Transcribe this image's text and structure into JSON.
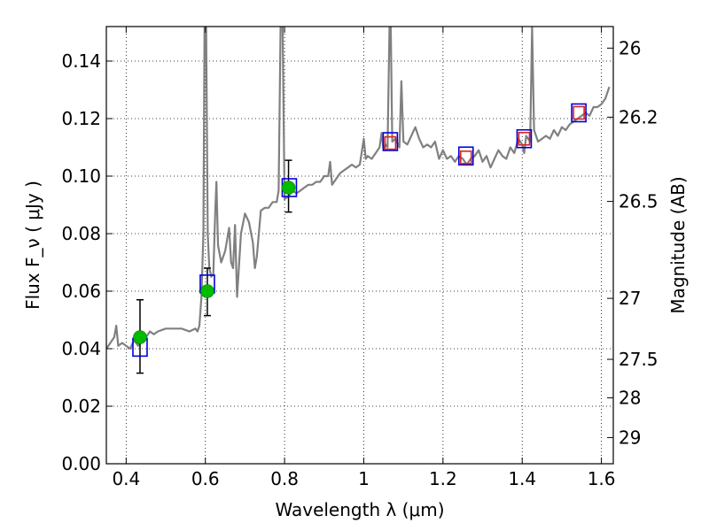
{
  "chart_data": {
    "type": "line",
    "xlabel": "Wavelength  λ (μm)",
    "ylabel": "Flux  F_ν  ( μJy )",
    "ylabel_right": "Magnitude (AB)",
    "xlim": [
      0.35,
      1.63
    ],
    "ylim": [
      0.0,
      0.152
    ],
    "grid": true,
    "x_ticks": [
      {
        "value": 0.4,
        "label": "0.4"
      },
      {
        "value": 0.6,
        "label": "0.6"
      },
      {
        "value": 0.8,
        "label": "0.8"
      },
      {
        "value": 1.0,
        "label": "1"
      },
      {
        "value": 1.2,
        "label": "1.2"
      },
      {
        "value": 1.4,
        "label": "1.4"
      },
      {
        "value": 1.6,
        "label": "1.6"
      }
    ],
    "y_ticks": [
      {
        "value": 0.0,
        "label": "0.00"
      },
      {
        "value": 0.02,
        "label": "0.02"
      },
      {
        "value": 0.04,
        "label": "0.04"
      },
      {
        "value": 0.06,
        "label": "0.06"
      },
      {
        "value": 0.08,
        "label": "0.08"
      },
      {
        "value": 0.1,
        "label": "0.10"
      },
      {
        "value": 0.12,
        "label": "0.12"
      },
      {
        "value": 0.14,
        "label": "0.14"
      }
    ],
    "y2_ticks": [
      {
        "flux": 0.1445,
        "label": "26"
      },
      {
        "flux": 0.1205,
        "label": "26.2"
      },
      {
        "flux": 0.0912,
        "label": "26.5"
      },
      {
        "flux": 0.0575,
        "label": "27"
      },
      {
        "flux": 0.0363,
        "label": "27.5"
      },
      {
        "flux": 0.0229,
        "label": "28"
      },
      {
        "flux": 0.0091,
        "label": "29"
      }
    ],
    "series": [
      {
        "type": "line",
        "color": "#808080",
        "points": [
          [
            0.35,
            0.04
          ],
          [
            0.36,
            0.042
          ],
          [
            0.37,
            0.044
          ],
          [
            0.375,
            0.048
          ],
          [
            0.38,
            0.041
          ],
          [
            0.39,
            0.042
          ],
          [
            0.4,
            0.041
          ],
          [
            0.41,
            0.04
          ],
          [
            0.42,
            0.043
          ],
          [
            0.43,
            0.041
          ],
          [
            0.44,
            0.044
          ],
          [
            0.45,
            0.044
          ],
          [
            0.46,
            0.046
          ],
          [
            0.47,
            0.045
          ],
          [
            0.48,
            0.046
          ],
          [
            0.5,
            0.047
          ],
          [
            0.52,
            0.047
          ],
          [
            0.54,
            0.047
          ],
          [
            0.56,
            0.046
          ],
          [
            0.575,
            0.047
          ],
          [
            0.58,
            0.046
          ],
          [
            0.585,
            0.048
          ],
          [
            0.59,
            0.058
          ],
          [
            0.595,
            0.08
          ],
          [
            0.598,
            0.152
          ],
          [
            0.602,
            0.152
          ],
          [
            0.606,
            0.08
          ],
          [
            0.61,
            0.068
          ],
          [
            0.615,
            0.065
          ],
          [
            0.62,
            0.066
          ],
          [
            0.625,
            0.088
          ],
          [
            0.628,
            0.098
          ],
          [
            0.632,
            0.076
          ],
          [
            0.64,
            0.07
          ],
          [
            0.65,
            0.074
          ],
          [
            0.66,
            0.082
          ],
          [
            0.665,
            0.07
          ],
          [
            0.67,
            0.068
          ],
          [
            0.675,
            0.083
          ],
          [
            0.68,
            0.058
          ],
          [
            0.69,
            0.08
          ],
          [
            0.7,
            0.087
          ],
          [
            0.71,
            0.084
          ],
          [
            0.72,
            0.077
          ],
          [
            0.725,
            0.068
          ],
          [
            0.73,
            0.072
          ],
          [
            0.74,
            0.088
          ],
          [
            0.75,
            0.089
          ],
          [
            0.76,
            0.089
          ],
          [
            0.77,
            0.091
          ],
          [
            0.78,
            0.091
          ],
          [
            0.785,
            0.095
          ],
          [
            0.79,
            0.152
          ],
          [
            0.795,
            0.152
          ],
          [
            0.8,
            0.092
          ],
          [
            0.81,
            0.093
          ],
          [
            0.82,
            0.095
          ],
          [
            0.83,
            0.094
          ],
          [
            0.84,
            0.095
          ],
          [
            0.85,
            0.096
          ],
          [
            0.86,
            0.097
          ],
          [
            0.87,
            0.097
          ],
          [
            0.88,
            0.098
          ],
          [
            0.89,
            0.098
          ],
          [
            0.9,
            0.1
          ],
          [
            0.91,
            0.1
          ],
          [
            0.915,
            0.105
          ],
          [
            0.92,
            0.097
          ],
          [
            0.93,
            0.099
          ],
          [
            0.94,
            0.101
          ],
          [
            0.95,
            0.102
          ],
          [
            0.96,
            0.103
          ],
          [
            0.97,
            0.104
          ],
          [
            0.98,
            0.103
          ],
          [
            0.99,
            0.104
          ],
          [
            1.0,
            0.113
          ],
          [
            1.005,
            0.106
          ],
          [
            1.01,
            0.107
          ],
          [
            1.02,
            0.106
          ],
          [
            1.03,
            0.108
          ],
          [
            1.04,
            0.11
          ],
          [
            1.045,
            0.115
          ],
          [
            1.05,
            0.109
          ],
          [
            1.055,
            0.111
          ],
          [
            1.06,
            0.11
          ],
          [
            1.065,
            0.152
          ],
          [
            1.068,
            0.152
          ],
          [
            1.072,
            0.112
          ],
          [
            1.08,
            0.113
          ],
          [
            1.09,
            0.11
          ],
          [
            1.095,
            0.133
          ],
          [
            1.1,
            0.112
          ],
          [
            1.11,
            0.111
          ],
          [
            1.12,
            0.114
          ],
          [
            1.13,
            0.117
          ],
          [
            1.14,
            0.113
          ],
          [
            1.15,
            0.11
          ],
          [
            1.16,
            0.111
          ],
          [
            1.17,
            0.11
          ],
          [
            1.18,
            0.112
          ],
          [
            1.19,
            0.106
          ],
          [
            1.2,
            0.109
          ],
          [
            1.21,
            0.106
          ],
          [
            1.22,
            0.107
          ],
          [
            1.23,
            0.105
          ],
          [
            1.24,
            0.107
          ],
          [
            1.25,
            0.106
          ],
          [
            1.26,
            0.104
          ],
          [
            1.27,
            0.106
          ],
          [
            1.28,
            0.107
          ],
          [
            1.29,
            0.109
          ],
          [
            1.3,
            0.105
          ],
          [
            1.31,
            0.107
          ],
          [
            1.32,
            0.103
          ],
          [
            1.33,
            0.106
          ],
          [
            1.34,
            0.109
          ],
          [
            1.35,
            0.107
          ],
          [
            1.36,
            0.106
          ],
          [
            1.37,
            0.11
          ],
          [
            1.38,
            0.108
          ],
          [
            1.39,
            0.113
          ],
          [
            1.4,
            0.111
          ],
          [
            1.405,
            0.108
          ],
          [
            1.41,
            0.114
          ],
          [
            1.42,
            0.112
          ],
          [
            1.425,
            0.152
          ],
          [
            1.43,
            0.116
          ],
          [
            1.44,
            0.112
          ],
          [
            1.45,
            0.113
          ],
          [
            1.46,
            0.114
          ],
          [
            1.47,
            0.113
          ],
          [
            1.48,
            0.116
          ],
          [
            1.49,
            0.114
          ],
          [
            1.5,
            0.117
          ],
          [
            1.51,
            0.116
          ],
          [
            1.52,
            0.118
          ],
          [
            1.53,
            0.119
          ],
          [
            1.54,
            0.12
          ],
          [
            1.55,
            0.121
          ],
          [
            1.56,
            0.122
          ],
          [
            1.57,
            0.121
          ],
          [
            1.58,
            0.124
          ],
          [
            1.59,
            0.124
          ],
          [
            1.6,
            0.125
          ],
          [
            1.61,
            0.127
          ],
          [
            1.62,
            0.131
          ]
        ]
      }
    ],
    "observed_points": {
      "color": "#00bb00",
      "points": [
        {
          "x": 0.435,
          "y": 0.044,
          "yerr_low": 0.0315,
          "yerr_high": 0.057
        },
        {
          "x": 0.605,
          "y": 0.06,
          "yerr_low": 0.0515,
          "yerr_high": 0.068
        },
        {
          "x": 0.81,
          "y": 0.096,
          "yerr_low": 0.0875,
          "yerr_high": 0.1055
        }
      ]
    },
    "model_squares": {
      "color": "#0000dd",
      "points": [
        {
          "x": 0.435,
          "y": 0.0405
        },
        {
          "x": 0.605,
          "y": 0.0625
        },
        {
          "x": 0.812,
          "y": 0.096
        },
        {
          "x": 1.067,
          "y": 0.112
        },
        {
          "x": 1.258,
          "y": 0.107
        },
        {
          "x": 1.405,
          "y": 0.113
        },
        {
          "x": 1.543,
          "y": 0.122
        }
      ]
    },
    "ir_squares": {
      "color": "#dd2222",
      "points": [
        {
          "x": 1.067,
          "y": 0.1115
        },
        {
          "x": 1.258,
          "y": 0.1065
        },
        {
          "x": 1.405,
          "y": 0.113
        },
        {
          "x": 1.543,
          "y": 0.122
        }
      ]
    }
  }
}
